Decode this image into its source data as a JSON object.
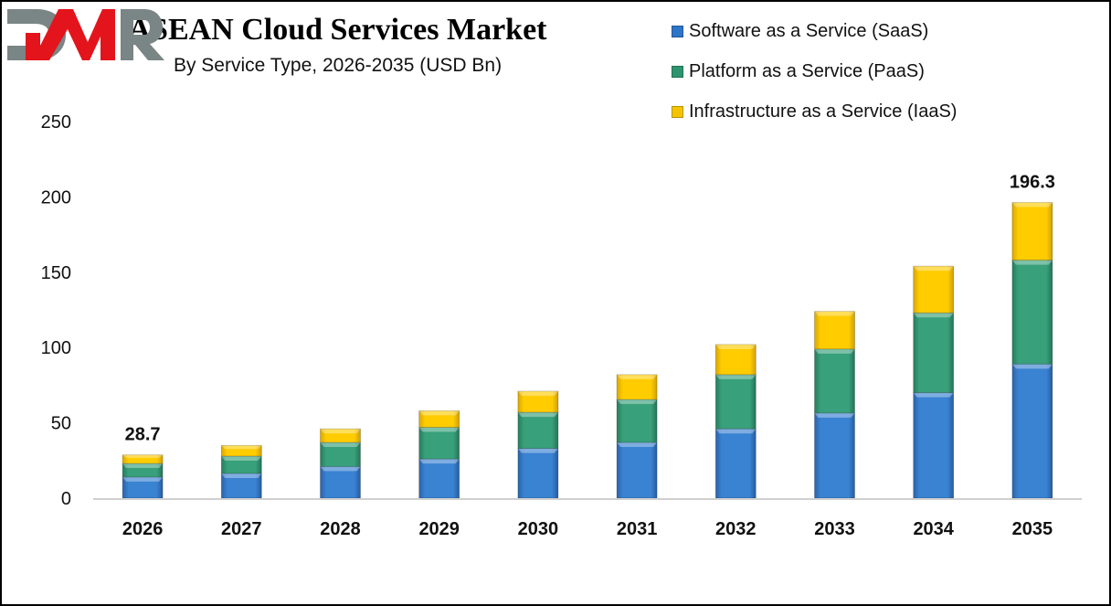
{
  "chart_data": {
    "type": "bar",
    "stacked": true,
    "title": "ASEAN Cloud Services Market",
    "subtitle": "By Service Type, 2026-2035 (USD Bn)",
    "xlabel": "",
    "ylabel": "",
    "ylim": [
      0,
      250
    ],
    "yticks": [
      0,
      50,
      100,
      150,
      200,
      250
    ],
    "grid": false,
    "legend_position": "top-right",
    "categories": [
      "2026",
      "2027",
      "2028",
      "2029",
      "2030",
      "2031",
      "2032",
      "2033",
      "2034",
      "2035"
    ],
    "series": [
      {
        "name": "Software as a Service (SaaS)",
        "color": "#2E75C7",
        "values": [
          14.0,
          16.4,
          21.0,
          26.0,
          33.0,
          37.0,
          46.0,
          56.5,
          70.0,
          89.0
        ]
      },
      {
        "name": "Platform as a Service (PaaS)",
        "color": "#2E9470",
        "values": [
          9.0,
          11.5,
          16.0,
          21.0,
          24.0,
          28.5,
          36.0,
          42.5,
          53.0,
          69.0
        ]
      },
      {
        "name": "Infrastructure as a Service (IaaS)",
        "color": "#F5C400",
        "values": [
          5.7,
          7.1,
          9.0,
          11.0,
          14.0,
          16.5,
          20.0,
          25.0,
          31.0,
          38.3
        ]
      }
    ],
    "data_labels": [
      {
        "category": "2026",
        "text": "28.7"
      },
      {
        "category": "2035",
        "text": "196.3"
      }
    ]
  },
  "logo": {
    "text": "DMR",
    "colors": {
      "primary": "#7A8585",
      "accent": "#E3141B"
    }
  }
}
